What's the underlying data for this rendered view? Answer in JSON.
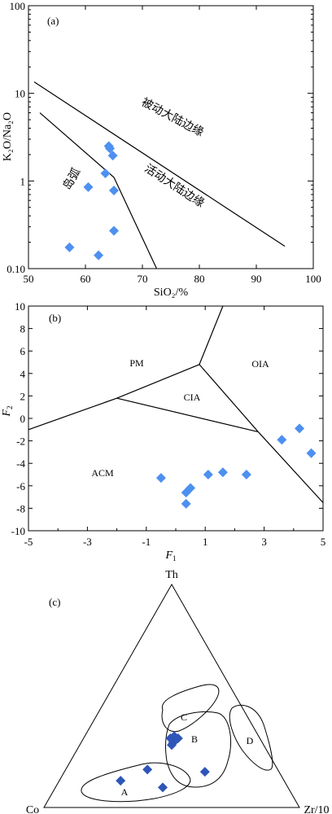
{
  "chart_data": [
    {
      "panel": "(a)",
      "type": "scatter",
      "xlabel": "SiO₂/%",
      "ylabel": "K₂O/Na₂O",
      "xlim": [
        50,
        100
      ],
      "ylim": [
        0.1,
        100
      ],
      "yscale": "log",
      "x_ticks": [
        "50",
        "60",
        "70",
        "80",
        "90",
        "100"
      ],
      "y_ticks": [
        "0.10",
        "1",
        "10",
        "100"
      ],
      "field_labels": [
        "被动大陆边缘",
        "活动大陆边缘",
        "岛弧"
      ],
      "boundary_lines": [
        [
          [
            51,
            13.5
          ],
          [
            95,
            0.18
          ]
        ],
        [
          [
            52,
            6.0
          ],
          [
            65,
            1.1
          ],
          [
            72.5,
            0.1
          ]
        ]
      ],
      "points": [
        {
          "x": 64.1,
          "y": 2.5
        },
        {
          "x": 64.3,
          "y": 2.35
        },
        {
          "x": 64.8,
          "y": 1.95
        },
        {
          "x": 63.5,
          "y": 1.22
        },
        {
          "x": 60.5,
          "y": 0.85
        },
        {
          "x": 65.0,
          "y": 0.78
        },
        {
          "x": 65.0,
          "y": 0.27
        },
        {
          "x": 57.2,
          "y": 0.175
        },
        {
          "x": 62.3,
          "y": 0.142
        }
      ],
      "color": "#4d90f0"
    },
    {
      "panel": "(b)",
      "type": "scatter",
      "xlabel": "F₁",
      "ylabel": "F₂",
      "xlim": [
        -5,
        5
      ],
      "ylim": [
        -10,
        10
      ],
      "x_ticks": [
        "-5",
        "-3",
        "-1",
        "1",
        "3",
        "5"
      ],
      "y_ticks": [
        "-10",
        "-8",
        "-6",
        "-4",
        "-2",
        "0",
        "2",
        "4",
        "6",
        "8",
        "10"
      ],
      "field_labels": [
        "PM",
        "CIA",
        "OIA",
        "ACM"
      ],
      "boundary_lines": [
        [
          [
            -5,
            -1.0
          ],
          [
            -2.0,
            1.8
          ],
          [
            0.8,
            4.8
          ]
        ],
        [
          [
            0.8,
            4.8
          ],
          [
            1.6,
            10
          ]
        ],
        [
          [
            0.8,
            4.8
          ],
          [
            2.8,
            -1.2
          ]
        ],
        [
          [
            -2.0,
            1.8
          ],
          [
            2.8,
            -1.2
          ]
        ],
        [
          [
            2.8,
            -1.2
          ],
          [
            5,
            -7.5
          ]
        ]
      ],
      "points": [
        {
          "x": -0.5,
          "y": -5.3
        },
        {
          "x": 0.35,
          "y": -6.6
        },
        {
          "x": 0.5,
          "y": -6.2
        },
        {
          "x": 0.35,
          "y": -7.6
        },
        {
          "x": 1.1,
          "y": -5.0
        },
        {
          "x": 1.6,
          "y": -4.8
        },
        {
          "x": 2.4,
          "y": -5.0
        },
        {
          "x": 3.6,
          "y": -1.9
        },
        {
          "x": 4.2,
          "y": -0.9
        },
        {
          "x": 4.6,
          "y": -3.1
        }
      ],
      "color": "#4d90f0"
    },
    {
      "panel": "(c)",
      "type": "scatter",
      "subtype": "ternary",
      "vertex_labels": {
        "top": "Th",
        "left": "Co",
        "right": "Zr/10"
      },
      "field_labels": [
        "A",
        "B",
        "C",
        "D"
      ],
      "points_comp": [
        {
          "th": 0.12,
          "co": 0.64,
          "zr": 0.24
        },
        {
          "th": 0.17,
          "co": 0.51,
          "zr": 0.32
        },
        {
          "th": 0.09,
          "co": 0.49,
          "zr": 0.42
        },
        {
          "th": 0.31,
          "co": 0.35,
          "zr": 0.34
        },
        {
          "th": 0.32,
          "co": 0.33,
          "zr": 0.35
        },
        {
          "th": 0.31,
          "co": 0.32,
          "zr": 0.37
        },
        {
          "th": 0.29,
          "co": 0.35,
          "zr": 0.36
        },
        {
          "th": 0.28,
          "co": 0.36,
          "zr": 0.36
        },
        {
          "th": 0.16,
          "co": 0.29,
          "zr": 0.55
        }
      ],
      "color": "#2e56b8"
    }
  ],
  "labels": {
    "a_panel": "(a)",
    "a_xlabel": "SiO₂/%",
    "a_ylabel": "K₂O/Na₂O",
    "a_passive": "被动大陆边缘",
    "a_active": "活动大陆边缘",
    "a_arc": "岛弧",
    "b_panel": "(b)",
    "b_pm": "PM",
    "b_cia": "CIA",
    "b_oia": "OIA",
    "b_acm": "ACM",
    "c_panel": "(c)",
    "c_th": "Th",
    "c_co": "Co",
    "c_zr": "Zr/10",
    "c_a": "A",
    "c_b": "B",
    "c_c": "C",
    "c_d": "D"
  }
}
